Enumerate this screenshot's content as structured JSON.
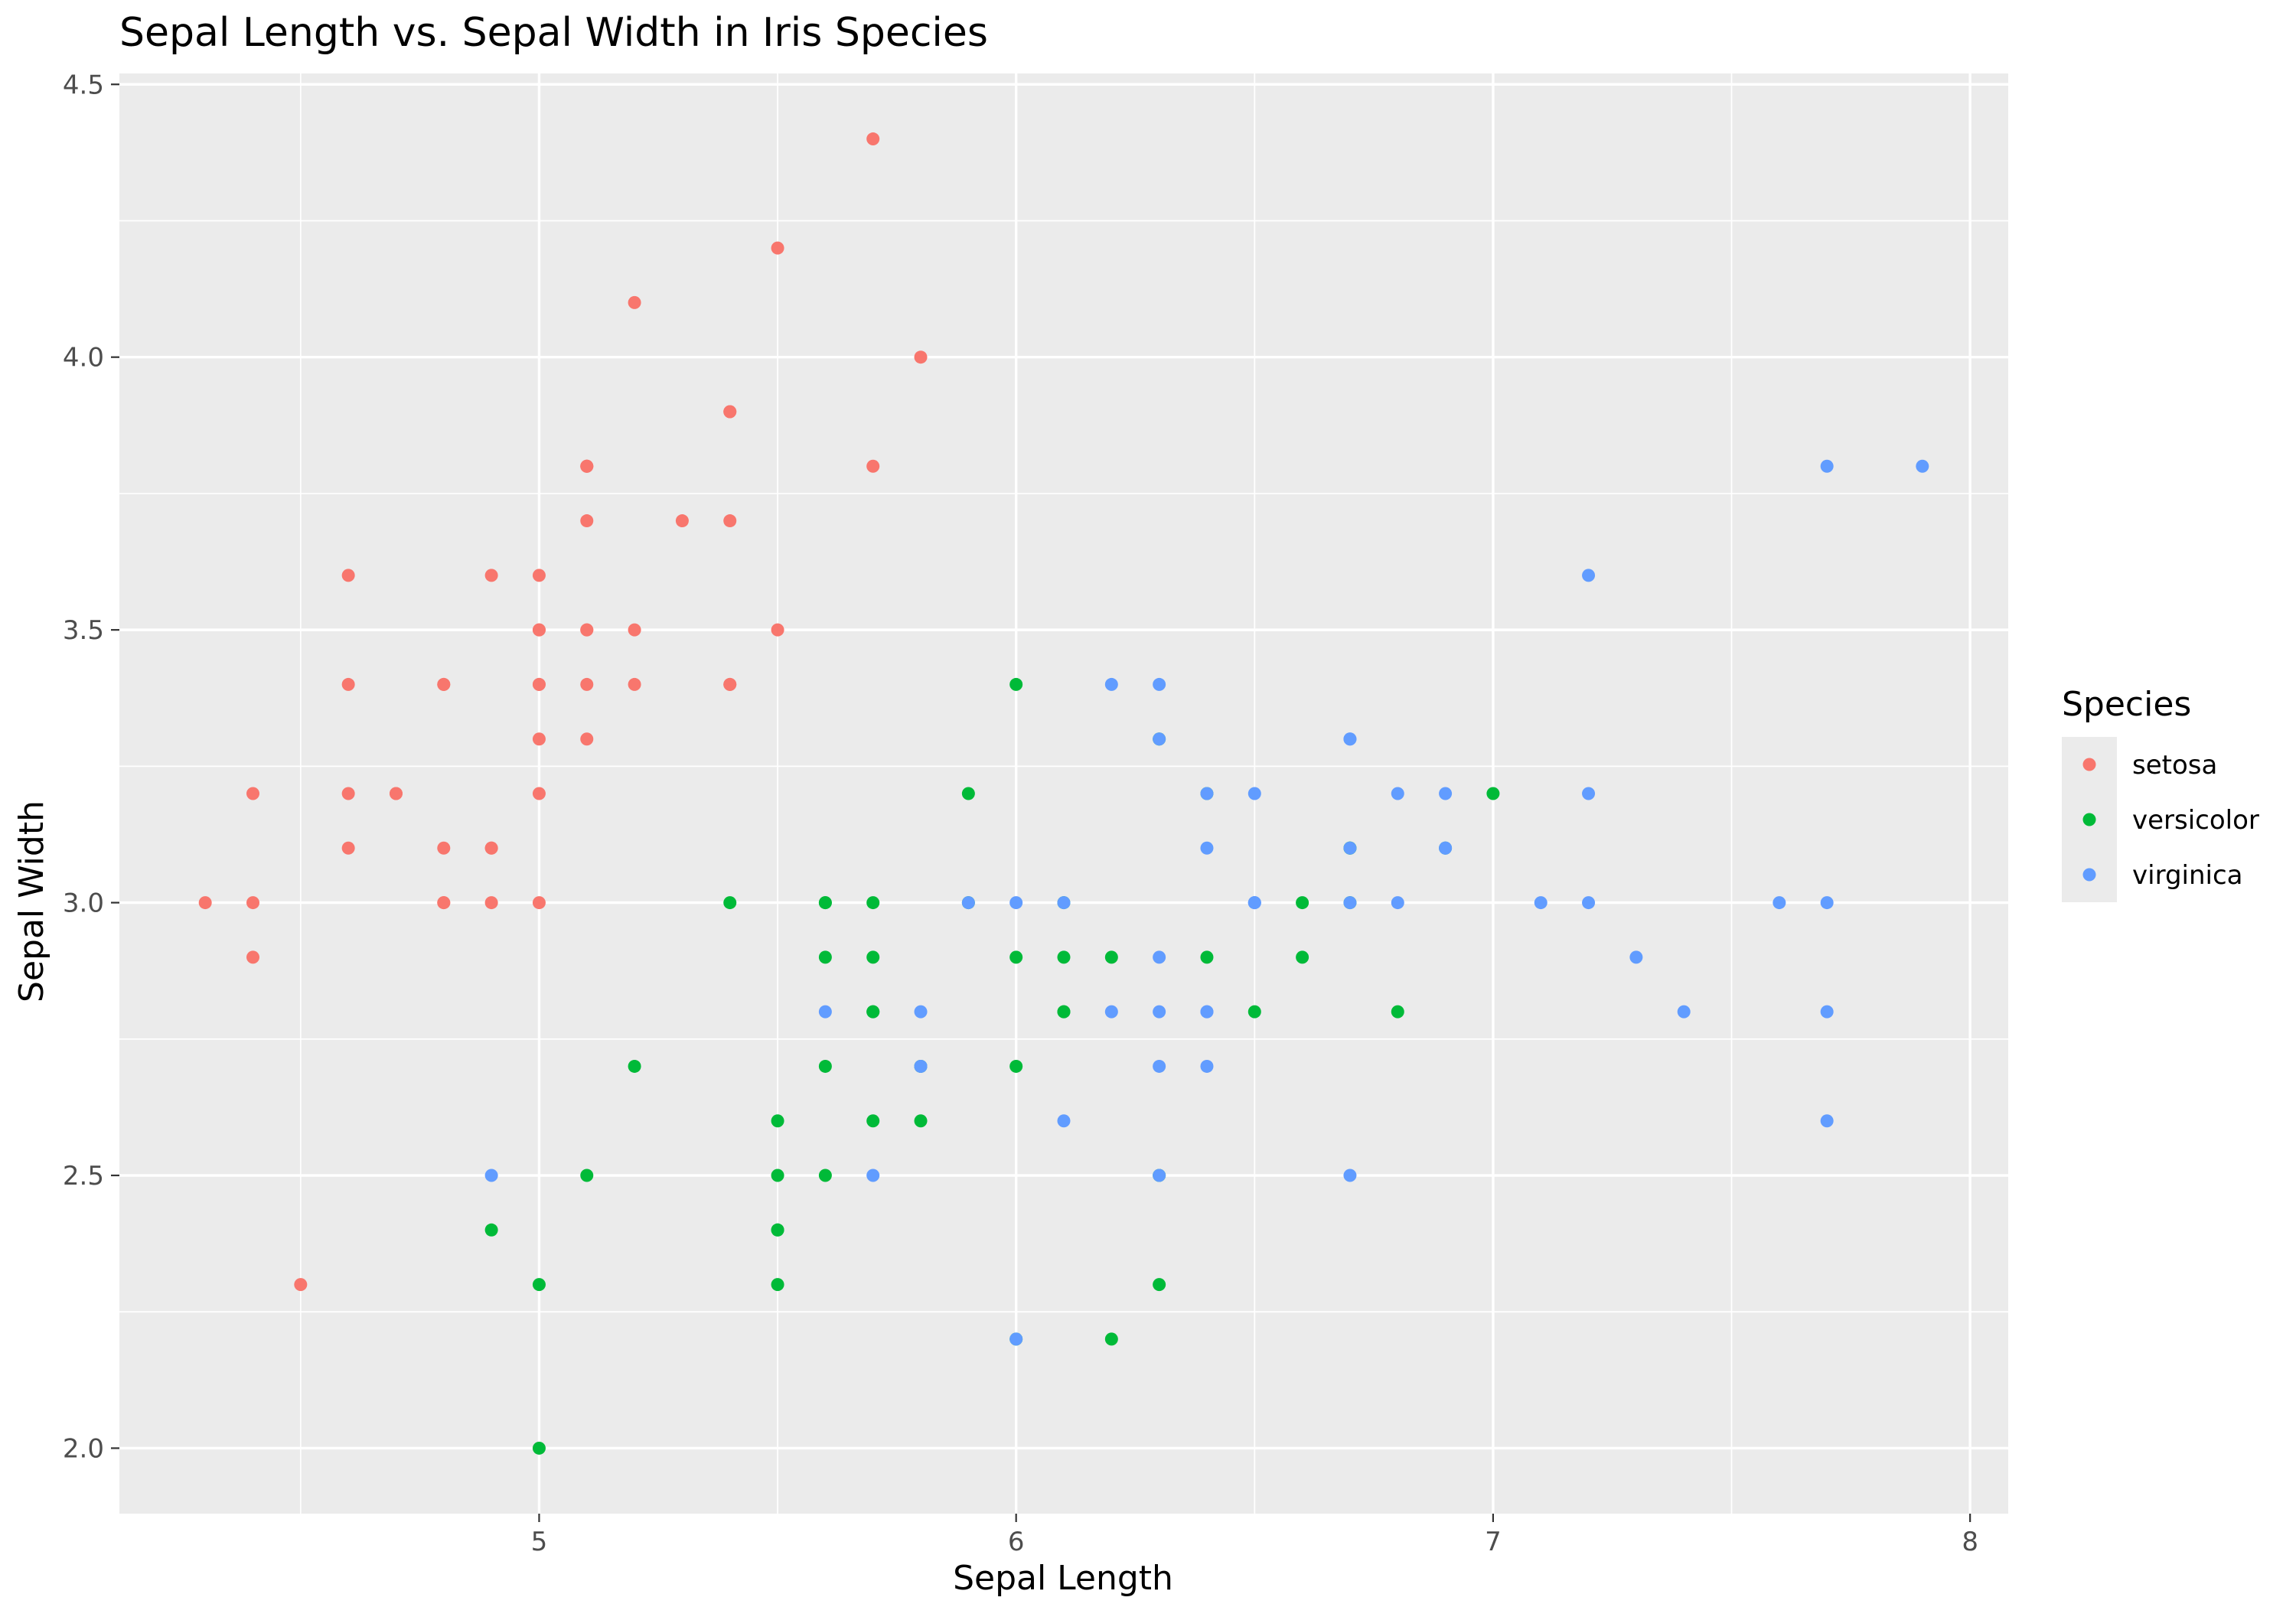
{
  "chart_data": {
    "type": "scatter",
    "title": "Sepal Length vs. Sepal Width in Iris Species",
    "xlabel": "Sepal Length",
    "ylabel": "Sepal Width",
    "xlim": [
      4.12,
      8.08
    ],
    "ylim": [
      1.88,
      4.52
    ],
    "x_ticks": [
      5,
      6,
      7,
      8
    ],
    "x_tick_labels": [
      "5",
      "6",
      "7",
      "8"
    ],
    "y_ticks": [
      2.0,
      2.5,
      3.0,
      3.5,
      4.0,
      4.5
    ],
    "y_tick_labels": [
      "2.0",
      "2.5",
      "3.0",
      "3.5",
      "4.0",
      "4.5"
    ],
    "grid": true,
    "background": "#ebebeb",
    "legend": {
      "title": "Species",
      "position": "right"
    },
    "series": [
      {
        "name": "setosa",
        "color": "#F8766D",
        "points": [
          [
            5.1,
            3.5
          ],
          [
            4.9,
            3.0
          ],
          [
            4.7,
            3.2
          ],
          [
            4.6,
            3.1
          ],
          [
            5.0,
            3.6
          ],
          [
            5.4,
            3.9
          ],
          [
            4.6,
            3.4
          ],
          [
            5.0,
            3.4
          ],
          [
            4.4,
            2.9
          ],
          [
            4.9,
            3.1
          ],
          [
            5.4,
            3.7
          ],
          [
            4.8,
            3.4
          ],
          [
            4.8,
            3.0
          ],
          [
            4.3,
            3.0
          ],
          [
            5.8,
            4.0
          ],
          [
            5.7,
            4.4
          ],
          [
            5.4,
            3.9
          ],
          [
            5.1,
            3.5
          ],
          [
            5.7,
            3.8
          ],
          [
            5.1,
            3.8
          ],
          [
            5.4,
            3.4
          ],
          [
            5.1,
            3.7
          ],
          [
            4.6,
            3.6
          ],
          [
            5.1,
            3.3
          ],
          [
            4.8,
            3.4
          ],
          [
            5.0,
            3.0
          ],
          [
            5.0,
            3.4
          ],
          [
            5.2,
            3.5
          ],
          [
            5.2,
            3.4
          ],
          [
            4.7,
            3.2
          ],
          [
            4.8,
            3.1
          ],
          [
            5.4,
            3.4
          ],
          [
            5.2,
            4.1
          ],
          [
            5.5,
            4.2
          ],
          [
            4.9,
            3.1
          ],
          [
            5.0,
            3.2
          ],
          [
            5.5,
            3.5
          ],
          [
            4.9,
            3.6
          ],
          [
            4.4,
            3.0
          ],
          [
            5.1,
            3.4
          ],
          [
            5.0,
            3.5
          ],
          [
            4.5,
            2.3
          ],
          [
            4.4,
            3.2
          ],
          [
            5.0,
            3.5
          ],
          [
            5.1,
            3.8
          ],
          [
            4.8,
            3.0
          ],
          [
            5.1,
            3.8
          ],
          [
            4.6,
            3.2
          ],
          [
            5.3,
            3.7
          ],
          [
            5.0,
            3.3
          ]
        ]
      },
      {
        "name": "versicolor",
        "color": "#00BA38",
        "points": [
          [
            7.0,
            3.2
          ],
          [
            6.4,
            3.2
          ],
          [
            6.9,
            3.1
          ],
          [
            5.5,
            2.3
          ],
          [
            6.5,
            2.8
          ],
          [
            5.7,
            2.8
          ],
          [
            6.3,
            3.3
          ],
          [
            4.9,
            2.4
          ],
          [
            6.6,
            2.9
          ],
          [
            5.2,
            2.7
          ],
          [
            5.0,
            2.0
          ],
          [
            5.9,
            3.0
          ],
          [
            6.0,
            2.2
          ],
          [
            6.1,
            2.9
          ],
          [
            5.6,
            2.9
          ],
          [
            6.7,
            3.1
          ],
          [
            5.6,
            3.0
          ],
          [
            5.8,
            2.7
          ],
          [
            6.2,
            2.2
          ],
          [
            5.6,
            2.5
          ],
          [
            5.9,
            3.2
          ],
          [
            6.1,
            2.8
          ],
          [
            6.3,
            2.5
          ],
          [
            6.1,
            2.8
          ],
          [
            6.4,
            2.9
          ],
          [
            6.6,
            3.0
          ],
          [
            6.8,
            2.8
          ],
          [
            6.7,
            3.0
          ],
          [
            6.0,
            2.9
          ],
          [
            5.7,
            2.6
          ],
          [
            5.5,
            2.4
          ],
          [
            5.5,
            2.4
          ],
          [
            5.8,
            2.7
          ],
          [
            6.0,
            2.7
          ],
          [
            5.4,
            3.0
          ],
          [
            6.0,
            3.4
          ],
          [
            6.7,
            3.1
          ],
          [
            6.3,
            2.3
          ],
          [
            5.6,
            3.0
          ],
          [
            5.5,
            2.5
          ],
          [
            5.5,
            2.6
          ],
          [
            6.1,
            3.0
          ],
          [
            5.8,
            2.6
          ],
          [
            5.0,
            2.3
          ],
          [
            5.6,
            2.7
          ],
          [
            5.7,
            3.0
          ],
          [
            5.7,
            2.9
          ],
          [
            6.2,
            2.9
          ],
          [
            5.1,
            2.5
          ],
          [
            5.7,
            2.8
          ]
        ]
      },
      {
        "name": "virginica",
        "color": "#619CFF",
        "points": [
          [
            6.3,
            3.3
          ],
          [
            5.8,
            2.7
          ],
          [
            7.1,
            3.0
          ],
          [
            6.3,
            2.9
          ],
          [
            6.5,
            3.0
          ],
          [
            7.6,
            3.0
          ],
          [
            4.9,
            2.5
          ],
          [
            7.3,
            2.9
          ],
          [
            6.7,
            2.5
          ],
          [
            7.2,
            3.6
          ],
          [
            6.5,
            3.2
          ],
          [
            6.4,
            2.7
          ],
          [
            6.8,
            3.0
          ],
          [
            5.7,
            2.5
          ],
          [
            5.8,
            2.8
          ],
          [
            6.4,
            3.2
          ],
          [
            6.5,
            3.0
          ],
          [
            7.7,
            3.8
          ],
          [
            7.7,
            2.6
          ],
          [
            6.0,
            2.2
          ],
          [
            6.9,
            3.2
          ],
          [
            5.6,
            2.8
          ],
          [
            7.7,
            2.8
          ],
          [
            6.3,
            2.7
          ],
          [
            6.7,
            3.3
          ],
          [
            7.2,
            3.2
          ],
          [
            6.2,
            2.8
          ],
          [
            6.1,
            3.0
          ],
          [
            6.4,
            2.8
          ],
          [
            7.2,
            3.0
          ],
          [
            7.4,
            2.8
          ],
          [
            7.9,
            3.8
          ],
          [
            6.4,
            2.8
          ],
          [
            6.3,
            2.8
          ],
          [
            6.1,
            2.6
          ],
          [
            7.7,
            3.0
          ],
          [
            6.3,
            3.4
          ],
          [
            6.4,
            3.1
          ],
          [
            6.0,
            3.0
          ],
          [
            6.9,
            3.1
          ],
          [
            6.7,
            3.1
          ],
          [
            6.9,
            3.1
          ],
          [
            5.8,
            2.7
          ],
          [
            6.8,
            3.2
          ],
          [
            6.7,
            3.3
          ],
          [
            6.7,
            3.0
          ],
          [
            6.3,
            2.5
          ],
          [
            6.5,
            3.0
          ],
          [
            6.2,
            3.4
          ],
          [
            5.9,
            3.0
          ]
        ]
      }
    ]
  }
}
